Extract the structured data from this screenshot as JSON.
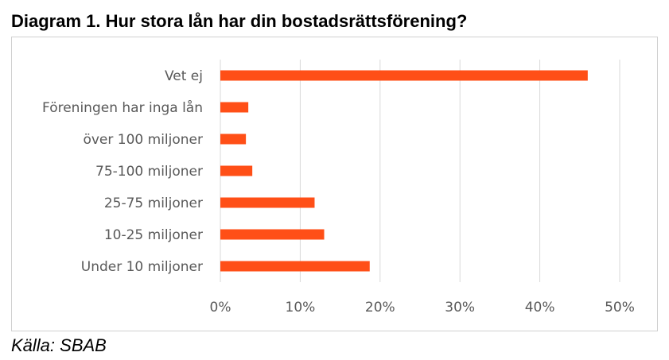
{
  "title": "Diagram 1. Hur stora lån har din bostadsrättsförening?",
  "source": "Källa: SBAB",
  "colors": {
    "bar": "#FF4F17",
    "grid": "#d9d9d9",
    "text": "#595959"
  },
  "chart_data": {
    "type": "bar",
    "orientation": "horizontal",
    "title": "Diagram 1. Hur stora lån har din bostadsrättsförening?",
    "categories": [
      "Vet ej",
      "Föreningen har inga lån",
      "över 100 miljoner",
      "75-100 miljoner",
      "25-75 miljoner",
      "10-25 miljoner",
      "Under 10 miljoner"
    ],
    "values": [
      46,
      3.5,
      3.2,
      4,
      11.8,
      13,
      18.7
    ],
    "xlim": [
      0,
      50
    ],
    "xticks": [
      0,
      10,
      20,
      30,
      40,
      50
    ],
    "xtick_labels": [
      "0%",
      "10%",
      "20%",
      "30%",
      "40%",
      "50%"
    ],
    "grid": "vertical",
    "legend": "none"
  }
}
